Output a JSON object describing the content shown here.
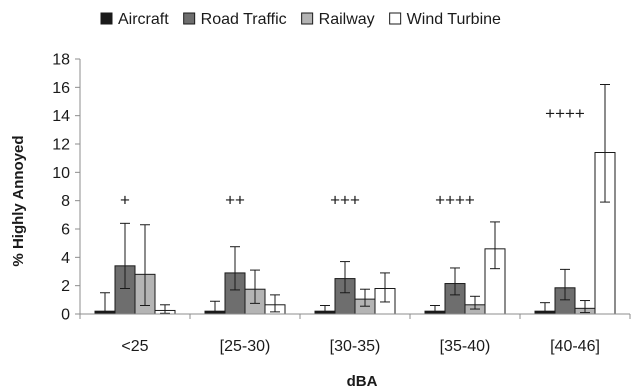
{
  "chart_data": {
    "type": "bar",
    "categories": [
      "<25",
      "[25-30)",
      "[30-35)",
      "[35-40)",
      "[40-46]"
    ],
    "series": [
      {
        "name": "Aircraft",
        "color": "#1a1a1a",
        "values": [
          0.2,
          0.2,
          0.2,
          0.2,
          0.2
        ],
        "error_low": [
          0.0,
          0.0,
          0.0,
          0.0,
          0.0
        ],
        "error_high": [
          1.5,
          0.9,
          0.6,
          0.6,
          0.8
        ]
      },
      {
        "name": "Road Traffic",
        "color": "#6e6e6e",
        "values": [
          3.4,
          2.9,
          2.5,
          2.15,
          1.85
        ],
        "error_low": [
          1.8,
          1.7,
          1.5,
          1.35,
          1.0
        ],
        "error_high": [
          6.4,
          4.75,
          3.7,
          3.25,
          3.15
        ]
      },
      {
        "name": "Railway",
        "color": "#b4b4b4",
        "values": [
          2.8,
          1.75,
          1.05,
          0.65,
          0.4
        ],
        "error_low": [
          0.6,
          0.75,
          0.55,
          0.35,
          0.1
        ],
        "error_high": [
          6.3,
          3.1,
          1.75,
          1.25,
          0.95
        ]
      },
      {
        "name": "Wind Turbine",
        "color": "#ffffff",
        "values": [
          0.25,
          0.65,
          1.8,
          4.6,
          11.4
        ],
        "error_low": [
          0.05,
          0.15,
          0.85,
          3.2,
          7.9
        ],
        "error_high": [
          0.65,
          1.35,
          2.9,
          6.5,
          16.2
        ]
      }
    ],
    "annotations": [
      "+",
      "++",
      "+++",
      "++++",
      "++++"
    ],
    "annotation_levels": [
      8.1,
      8.1,
      8.1,
      8.1,
      14.2
    ],
    "xlabel": "dBA",
    "ylabel": "% Highly Annoyed",
    "ylim": [
      0,
      18
    ],
    "yticks": [
      0,
      2,
      4,
      6,
      8,
      10,
      12,
      14,
      16,
      18
    ],
    "grid": false,
    "legend_position": "top"
  }
}
